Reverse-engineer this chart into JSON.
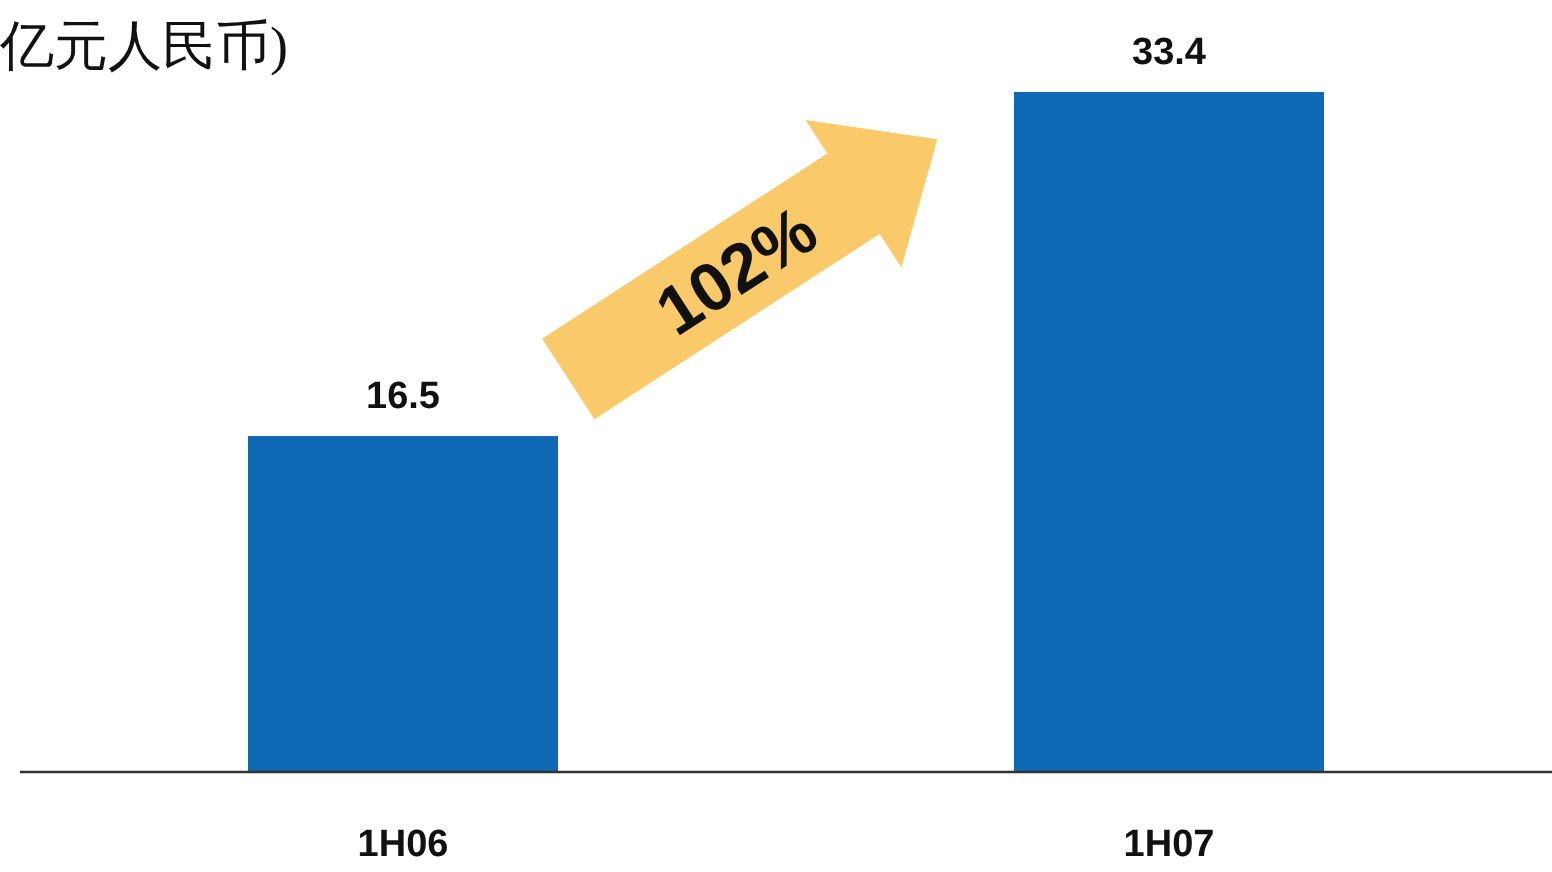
{
  "chart_data": {
    "type": "bar",
    "title": "亿元人民币)",
    "categories": [
      "1H06",
      "1H07"
    ],
    "values": [
      16.5,
      33.4
    ],
    "color": "#0f68b4",
    "data_labels": true,
    "annotations": [
      "102%"
    ]
  }
}
